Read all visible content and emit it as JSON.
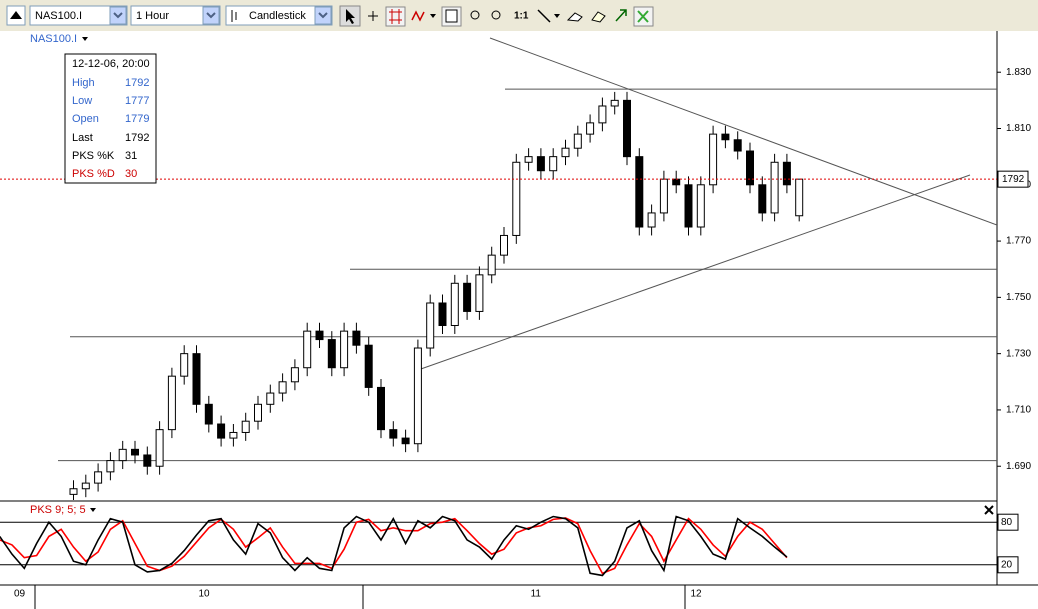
{
  "toolbar": {
    "symbol": "NAS100.I",
    "period": "1 Hour",
    "chart_type": "Candlestick",
    "zoom": "1:1"
  },
  "tooltip": {
    "date": "12-12-06, 20:00",
    "labels": [
      "High",
      "Low",
      "Open",
      "Last"
    ]
  },
  "chart_data": [
    {
      "type": "candlestick",
      "title": "NAS100.I",
      "categories": [
        "09",
        null,
        null,
        null,
        null,
        null,
        null,
        null,
        null,
        null,
        null,
        null,
        null,
        null,
        null,
        "10",
        null,
        null,
        null,
        null,
        null,
        null,
        null,
        null,
        null,
        null,
        null,
        null,
        null,
        null,
        null,
        null,
        null,
        null,
        null,
        null,
        null,
        null,
        null,
        null,
        null,
        null,
        "11",
        null,
        null,
        null,
        null,
        null,
        null,
        null,
        null,
        null,
        null,
        null,
        null,
        "12",
        null,
        null,
        null,
        null,
        null,
        null,
        null,
        null,
        null
      ],
      "open": [
        null,
        null,
        null,
        null,
        null,
        1680,
        1682,
        1684,
        1688,
        1692,
        1696,
        1694,
        1690,
        1703,
        1722,
        1730,
        1712,
        1705,
        1700,
        1702,
        1706,
        1712,
        1716,
        1720,
        1725,
        1738,
        1735,
        1725,
        1738,
        1733,
        1718,
        1703,
        1700,
        1698,
        1732,
        1748,
        1740,
        1755,
        1745,
        1758,
        1765,
        1772,
        1798,
        1800,
        1795,
        1800,
        1803,
        1808,
        1812,
        1818,
        1820,
        1800,
        1775,
        1780,
        1792,
        1790,
        1775,
        1790,
        1808,
        1806,
        1802,
        1790,
        1780,
        1798,
        1779
      ],
      "high": [
        null,
        null,
        null,
        null,
        null,
        1685,
        1687,
        1691,
        1695,
        1699,
        1699,
        1697,
        1706,
        1725,
        1733,
        1733,
        1715,
        1708,
        1705,
        1709,
        1715,
        1719,
        1723,
        1728,
        1741,
        1741,
        1738,
        1741,
        1741,
        1736,
        1721,
        1706,
        1703,
        1735,
        1751,
        1751,
        1758,
        1758,
        1761,
        1768,
        1775,
        1801,
        1803,
        1803,
        1803,
        1806,
        1811,
        1815,
        1821,
        1823,
        1823,
        1803,
        1783,
        1795,
        1795,
        1793,
        1793,
        1811,
        1811,
        1809,
        1805,
        1793,
        1801,
        1801,
        1792
      ],
      "low": [
        null,
        null,
        null,
        null,
        null,
        1677,
        1679,
        1681,
        1685,
        1689,
        1691,
        1687,
        1687,
        1700,
        1719,
        1709,
        1702,
        1697,
        1697,
        1699,
        1703,
        1709,
        1713,
        1717,
        1722,
        1732,
        1722,
        1722,
        1730,
        1715,
        1700,
        1697,
        1695,
        1695,
        1729,
        1737,
        1737,
        1742,
        1742,
        1755,
        1762,
        1769,
        1795,
        1792,
        1792,
        1797,
        1800,
        1805,
        1809,
        1815,
        1797,
        1772,
        1772,
        1777,
        1787,
        1772,
        1772,
        1787,
        1803,
        1799,
        1787,
        1777,
        1777,
        1787,
        1777
      ],
      "close": [
        null,
        null,
        null,
        null,
        null,
        1682,
        1684,
        1688,
        1692,
        1696,
        1694,
        1690,
        1703,
        1722,
        1730,
        1712,
        1705,
        1700,
        1702,
        1706,
        1712,
        1716,
        1720,
        1725,
        1738,
        1735,
        1725,
        1738,
        1733,
        1718,
        1703,
        1700,
        1698,
        1732,
        1748,
        1740,
        1755,
        1745,
        1758,
        1765,
        1772,
        1798,
        1800,
        1795,
        1800,
        1803,
        1808,
        1812,
        1818,
        1820,
        1800,
        1775,
        1780,
        1792,
        1790,
        1775,
        1790,
        1808,
        1806,
        1802,
        1790,
        1780,
        1798,
        1790,
        1792
      ],
      "hlines": [
        1824,
        1760,
        1736,
        1692
      ],
      "ylim": [
        1678,
        1845
      ],
      "yticks": [
        {
          "value": 1690,
          "label": "1.690"
        },
        {
          "value": 1710,
          "label": "1.710"
        },
        {
          "value": 1730,
          "label": "1.730"
        },
        {
          "value": 1750,
          "label": "1.750"
        },
        {
          "value": 1770,
          "label": "1.770"
        },
        {
          "value": 1790,
          "label": "1.790"
        },
        {
          "value": 1810,
          "label": "1.810"
        },
        {
          "value": 1830,
          "label": "1.830"
        }
      ]
    },
    {
      "type": "line",
      "title": "PKS 9; 5; 5",
      "series": [
        {
          "name": "PKS %K",
          "color": "#000000",
          "values": [
            60,
            35,
            15,
            50,
            80,
            60,
            25,
            20,
            55,
            85,
            80,
            20,
            10,
            12,
            22,
            40,
            62,
            82,
            85,
            55,
            35,
            78,
            65,
            30,
            12,
            30,
            15,
            12,
            72,
            88,
            80,
            55,
            85,
            50,
            82,
            72,
            88,
            82,
            55,
            45,
            28,
            55,
            75,
            70,
            80,
            88,
            85,
            72,
            8,
            5,
            25,
            72,
            82,
            40,
            12,
            88,
            82,
            60,
            35,
            28,
            85,
            72,
            60,
            45,
            31
          ]
        },
        {
          "name": "PKS %D",
          "color": "#ff0000",
          "values": [
            55,
            48,
            30,
            33,
            60,
            70,
            45,
            25,
            38,
            70,
            82,
            50,
            18,
            12,
            18,
            32,
            52,
            72,
            84,
            70,
            45,
            58,
            72,
            45,
            22,
            22,
            22,
            15,
            42,
            80,
            84,
            68,
            72,
            68,
            68,
            78,
            80,
            85,
            68,
            50,
            35,
            42,
            65,
            72,
            75,
            84,
            86,
            78,
            40,
            8,
            15,
            48,
            78,
            60,
            25,
            55,
            85,
            70,
            48,
            32,
            60,
            80,
            70,
            50,
            30
          ]
        }
      ],
      "ylim": [
        0,
        100
      ],
      "yticks": [
        20,
        80
      ]
    }
  ]
}
